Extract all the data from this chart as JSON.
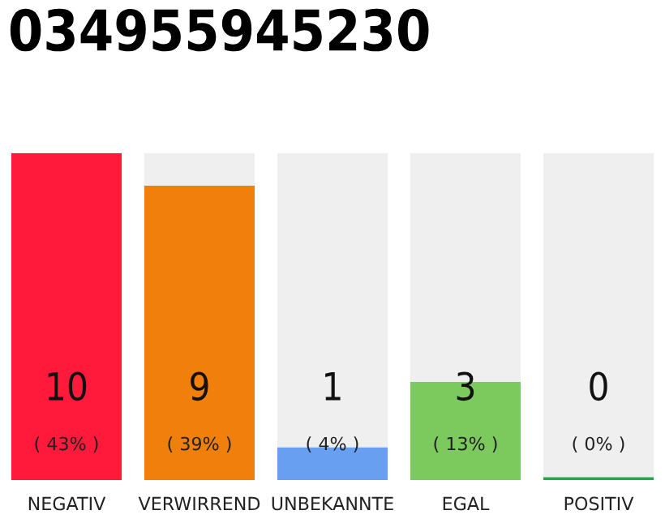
{
  "chart_data": {
    "type": "bar",
    "title": "034955945230",
    "categories": [
      "NEGATIV",
      "VERWIRREND",
      "UNBEKANNTE",
      "EGAL",
      "POSITIV"
    ],
    "values": [
      10,
      9,
      1,
      3,
      0
    ],
    "colors": [
      "#ff1a3c",
      "#f17f0c",
      "#699ff0",
      "#7cc95d",
      "#22a94a"
    ],
    "value_labels": [
      "10\n( 43% )",
      "9\n( 39% )",
      "1\n( 4% )",
      "3\n( 13% )",
      "0\n( 0% )"
    ],
    "ylim": [
      0,
      10
    ]
  }
}
